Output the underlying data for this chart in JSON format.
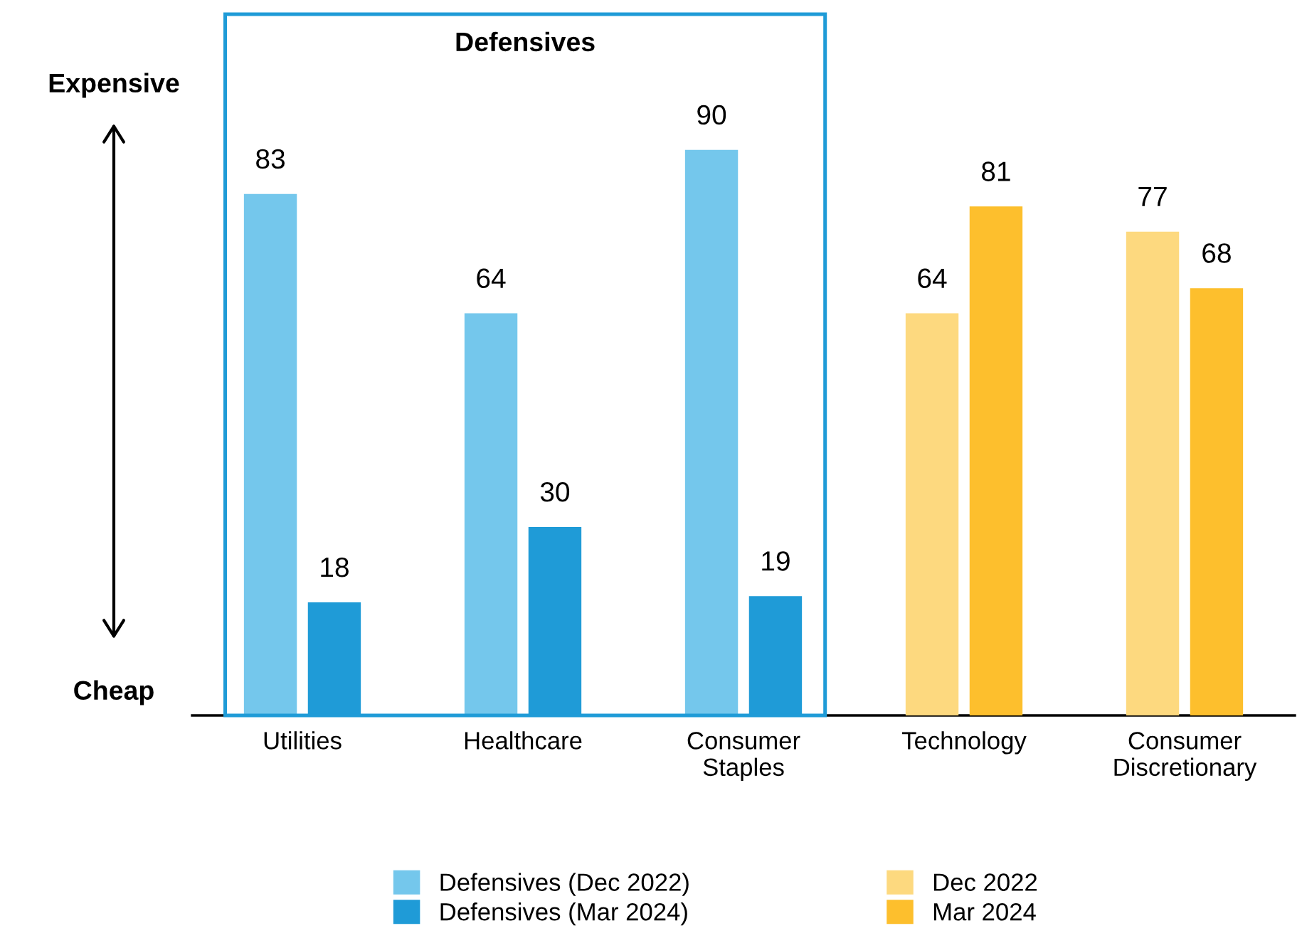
{
  "chart_data": {
    "type": "bar",
    "categories": [
      "Utilities",
      "Healthcare",
      "Consumer\nStaples",
      "Technology",
      "Consumer\nDiscretionary"
    ],
    "series": [
      {
        "name": "Defensives (Dec 2022)",
        "color": "#74c7ec",
        "values": [
          83,
          64,
          90,
          null,
          null
        ]
      },
      {
        "name": "Defensives (Mar 2024)",
        "color": "#1f9bd7",
        "values": [
          18,
          30,
          19,
          null,
          null
        ]
      },
      {
        "name": "Dec 2022",
        "color": "#fdd97f",
        "values": [
          null,
          null,
          null,
          64,
          77
        ]
      },
      {
        "name": "Mar 2024",
        "color": "#fdbf2d",
        "values": [
          null,
          null,
          null,
          81,
          68
        ]
      }
    ],
    "data_labels": true,
    "annotations": [
      "Defensives",
      "Expensive",
      "Cheap"
    ],
    "legend": "bottom",
    "grid": false
  }
}
